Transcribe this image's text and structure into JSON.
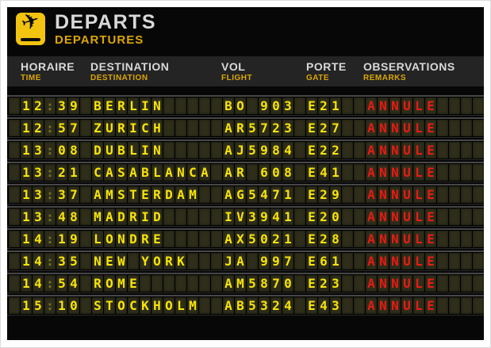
{
  "brand": {
    "title": "DEPARTS",
    "subtitle": "DEPARTURES",
    "logo_icon": "airplane-departure-icon"
  },
  "header": {
    "columns": [
      {
        "label": "HORAIRE",
        "sub": "TIME"
      },
      {
        "label": "DESTINATION",
        "sub": "DESTINATION"
      },
      {
        "label": "VOL",
        "sub": "FLIGHT"
      },
      {
        "label": "PORTE",
        "sub": "GATE"
      },
      {
        "label": "OBSERVATIONS",
        "sub": "REMARKS"
      }
    ]
  },
  "board": {
    "fields": [
      {
        "key": "time",
        "cells": 5
      },
      {
        "key": "destination",
        "cells": 10
      },
      {
        "key": "flight",
        "cells": 6
      },
      {
        "key": "gate",
        "cells": 3
      },
      {
        "key": "remarks",
        "cells": 11,
        "lead": 1,
        "style": "red"
      }
    ],
    "rows": [
      {
        "time": "12:39",
        "destination": "BERLIN",
        "flight": "BO 903",
        "gate": "E21",
        "remarks": "ANNULE"
      },
      {
        "time": "12:57",
        "destination": "ZURICH",
        "flight": "AR5723",
        "gate": "E27",
        "remarks": "ANNULE"
      },
      {
        "time": "13:08",
        "destination": "DUBLIN",
        "flight": "AJ5984",
        "gate": "E22",
        "remarks": "ANNULE"
      },
      {
        "time": "13:21",
        "destination": "CASABLANCA",
        "flight": "AR 608",
        "gate": "E41",
        "remarks": "ANNULE"
      },
      {
        "time": "13:37",
        "destination": "AMSTERDAM",
        "flight": "AG5471",
        "gate": "E29",
        "remarks": "ANNULE"
      },
      {
        "time": "13:48",
        "destination": "MADRID",
        "flight": "IV3941",
        "gate": "E20",
        "remarks": "ANNULE"
      },
      {
        "time": "14:19",
        "destination": "LONDRE",
        "flight": "AX5021",
        "gate": "E28",
        "remarks": "ANNULE"
      },
      {
        "time": "14:35",
        "destination": "NEW YORK",
        "flight": "JA 997",
        "gate": "E61",
        "remarks": "ANNULE"
      },
      {
        "time": "14:54",
        "destination": "ROME",
        "flight": "AM5870",
        "gate": "E23",
        "remarks": "ANNULE"
      },
      {
        "time": "15:10",
        "destination": "STOCKHOLM",
        "flight": "AB5324",
        "gate": "E43",
        "remarks": "ANNULE"
      }
    ]
  },
  "colors": {
    "gold": "#f2c30f",
    "gold-text": "#dca607",
    "yellow": "#f8e408",
    "red": "#ea1a12",
    "cell-bg": "#2f2e1b",
    "band-bg": "#242424",
    "board-bg": "#070707"
  },
  "icons": {
    "plane_glyph": "✈"
  }
}
